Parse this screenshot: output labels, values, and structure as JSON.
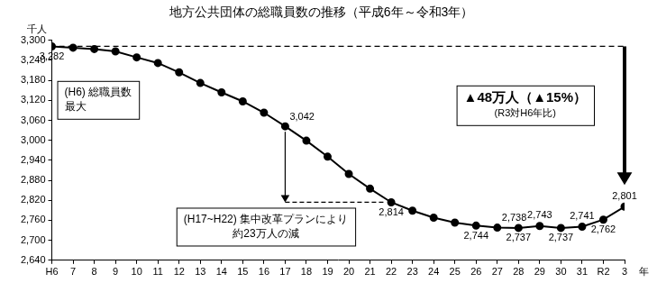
{
  "chart_data": {
    "type": "line",
    "title": "地方公共団体の総職員数の推移（平成6年～令和3年）",
    "y_label": "千人",
    "x_label": "年",
    "categories": [
      "H6",
      "7",
      "8",
      "9",
      "10",
      "11",
      "12",
      "13",
      "14",
      "15",
      "16",
      "17",
      "18",
      "19",
      "20",
      "21",
      "22",
      "23",
      "24",
      "25",
      "26",
      "27",
      "28",
      "29",
      "30",
      "31",
      "R2",
      "3"
    ],
    "values": [
      3282,
      3278,
      3274,
      3267,
      3249,
      3232,
      3204,
      3172,
      3144,
      3117,
      3083,
      3042,
      2999,
      2951,
      2899,
      2855,
      2814,
      2789,
      2768,
      2753,
      2744,
      2738,
      2737,
      2743,
      2737,
      2741,
      2762,
      2801
    ],
    "value_labels": [
      "3,282",
      null,
      null,
      null,
      null,
      null,
      null,
      null,
      null,
      null,
      null,
      "3,042",
      null,
      null,
      null,
      null,
      "2,814",
      null,
      null,
      null,
      "2,744",
      "2,738",
      "2,737",
      "2,743",
      "2,737",
      "2,741",
      "2,762",
      "2,801"
    ],
    "data_labels": true,
    "color": "#000000",
    "marker": "circle",
    "line_style": "solid",
    "ylim": [
      2640,
      3300
    ],
    "yticks": [
      {
        "value": 2640,
        "label": "2,640"
      },
      {
        "value": 2700,
        "label": "2,700"
      },
      {
        "value": 2760,
        "label": "2,760"
      },
      {
        "value": 2820,
        "label": "2,820"
      },
      {
        "value": 2880,
        "label": "2,880"
      },
      {
        "value": 2940,
        "label": "2,940"
      },
      {
        "value": 3000,
        "label": "3,000"
      },
      {
        "value": 3060,
        "label": "3,060"
      },
      {
        "value": 3120,
        "label": "3,120"
      },
      {
        "value": 3180,
        "label": "3,180"
      },
      {
        "value": 3240,
        "label": "3,240"
      },
      {
        "value": 3300,
        "label": "3,300"
      }
    ],
    "grid": false,
    "annotations": [
      {
        "text": [
          "(H6) 総職員数",
          "最大"
        ]
      },
      {
        "text": [
          "▲48万人（▲15%）",
          "(R3対H6年比)"
        ],
        "from": "H6",
        "to": "3"
      },
      {
        "text": [
          "(H17~H22) 集中改革プランにより",
          "約23万人の減"
        ],
        "from": "17",
        "to": "22"
      }
    ]
  }
}
